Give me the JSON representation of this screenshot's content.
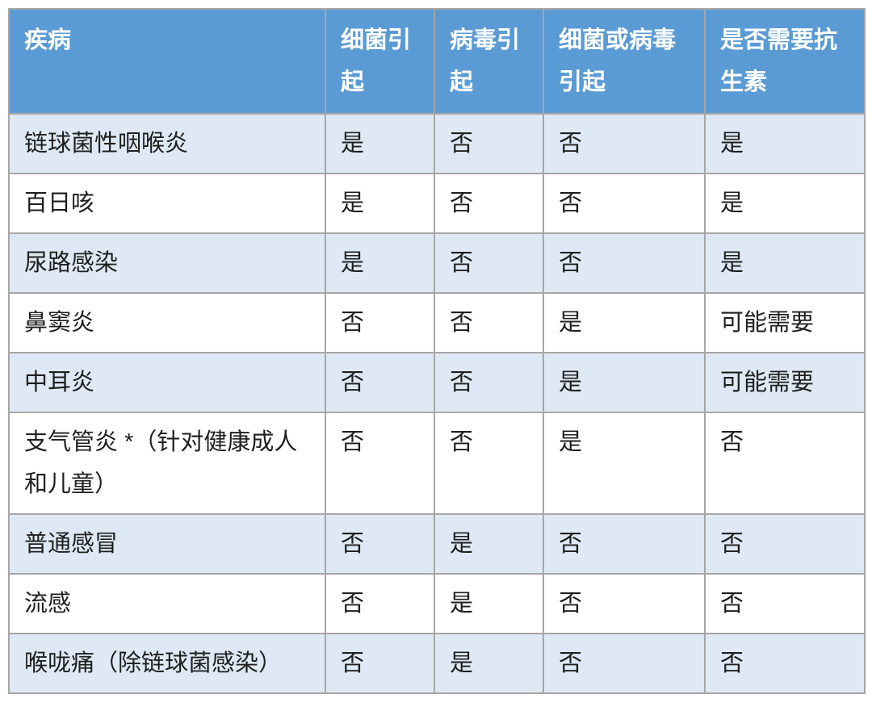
{
  "chart_data": {
    "type": "table",
    "columns": [
      "疾病",
      "细菌引起",
      "病毒引起",
      "细菌或病毒引起",
      "是否需要抗生素"
    ],
    "rows": [
      [
        "链球菌性咽喉炎",
        "是",
        "否",
        "否",
        "是"
      ],
      [
        "百日咳",
        "是",
        "否",
        "否",
        "是"
      ],
      [
        "尿路感染",
        "是",
        "否",
        "否",
        "是"
      ],
      [
        "鼻窦炎",
        "否",
        "否",
        "是",
        "可能需要"
      ],
      [
        "中耳炎",
        "否",
        "否",
        "是",
        "可能需要"
      ],
      [
        "支气管炎 *（针对健康成人和儿童）",
        "否",
        "否",
        "是",
        "否"
      ],
      [
        "普通感冒",
        "否",
        "是",
        "否",
        "否"
      ],
      [
        "流感",
        "否",
        "是",
        "否",
        "否"
      ],
      [
        "喉咙痛（除链球菌感染）",
        "否",
        "是",
        "否",
        "否"
      ]
    ],
    "layout": {
      "grid": true,
      "header_position": "top",
      "row_banding": "odd-rows-shaded"
    }
  },
  "colors": {
    "header_bg": "#5B9BD5",
    "header_text": "#FFFFFF",
    "band_bg": "#DEE9F5",
    "plain_bg": "#FFFFFF",
    "border": "#A6A6A6",
    "body_text": "#1F1F1F"
  }
}
